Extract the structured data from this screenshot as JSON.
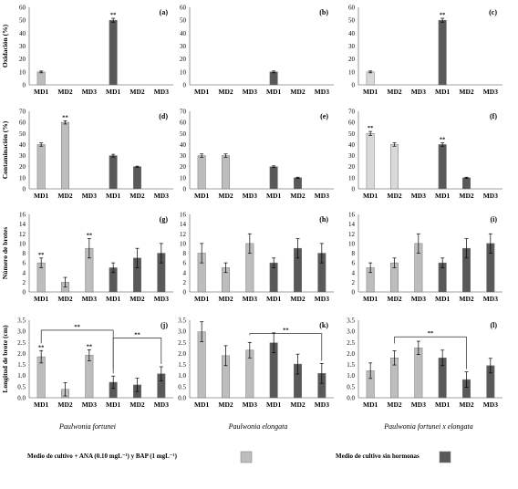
{
  "figure": {
    "species": [
      "Paulwonia fortunei",
      "Paulwonia elongata",
      "Paulwonia fortunei x elongata"
    ],
    "legend": {
      "hormone_label": "Medio de cultivo + ANA (0.10 mgL⁻¹) y BAP (1 mgL⁻¹)",
      "no_hormone_label": "Medio de cultivo sin hormonas"
    },
    "colors": {
      "light": "#bdbdbd",
      "lighter": "#d9d9d9",
      "dark": "#595959",
      "bar_stroke": "#777777",
      "axis": "#7f7f7f",
      "grid": "#000000"
    }
  },
  "chart_data": [
    {
      "panel": "a",
      "row": 0,
      "col": 0,
      "type": "bar",
      "ylabel": "Oxidación (%)",
      "ylim": [
        0,
        60
      ],
      "yticks": [
        0,
        10,
        20,
        30,
        40,
        50,
        60
      ],
      "categories": [
        "MD1",
        "MD2",
        "MD3",
        "MD1",
        "MD2",
        "MD3"
      ],
      "values": [
        10,
        0,
        0,
        50,
        0,
        0
      ],
      "errors": [
        0.7,
        0,
        0,
        1.5,
        0,
        0
      ],
      "stars": [
        "",
        "",
        "",
        "**",
        "",
        ""
      ],
      "fill": [
        "light",
        "light",
        "light",
        "dark",
        "dark",
        "dark"
      ]
    },
    {
      "panel": "b",
      "row": 0,
      "col": 1,
      "type": "bar",
      "ylabel": "",
      "ylim": [
        0,
        60
      ],
      "yticks": [
        0,
        10,
        20,
        30,
        40,
        50,
        60
      ],
      "categories": [
        "MD1",
        "MD2",
        "MD3",
        "MD1",
        "MD2",
        "MD3"
      ],
      "values": [
        0,
        0,
        0,
        10,
        0,
        0
      ],
      "errors": [
        0,
        0,
        0,
        0.7,
        0,
        0
      ],
      "stars": [
        "",
        "",
        "",
        "",
        "",
        ""
      ],
      "fill": [
        "light",
        "light",
        "light",
        "dark",
        "dark",
        "dark"
      ]
    },
    {
      "panel": "c",
      "row": 0,
      "col": 2,
      "type": "bar",
      "ylabel": "",
      "ylim": [
        0,
        60
      ],
      "yticks": [
        0,
        10,
        20,
        30,
        40,
        50,
        60
      ],
      "categories": [
        "MD1",
        "MD2",
        "MD3",
        "MD1",
        "MD2",
        "MD3"
      ],
      "values": [
        10,
        0,
        0,
        50,
        0,
        0
      ],
      "errors": [
        0.7,
        0,
        0,
        1.5,
        0,
        0
      ],
      "stars": [
        "",
        "",
        "",
        "**",
        "",
        ""
      ],
      "fill": [
        "lighter",
        "lighter",
        "lighter",
        "dark",
        "dark",
        "dark"
      ]
    },
    {
      "panel": "d",
      "row": 1,
      "col": 0,
      "type": "bar",
      "ylabel": "Contaminación (%)",
      "ylim": [
        0,
        70
      ],
      "yticks": [
        0,
        10,
        20,
        30,
        40,
        50,
        60,
        70
      ],
      "categories": [
        "MD1",
        "MD2",
        "MD3",
        "MD1",
        "MD2",
        "MD3"
      ],
      "values": [
        40,
        60,
        0,
        30,
        20,
        0
      ],
      "errors": [
        1.5,
        1.5,
        0,
        1.2,
        0.5,
        0
      ],
      "stars": [
        "",
        "**",
        "",
        "",
        "",
        ""
      ],
      "fill": [
        "light",
        "light",
        "light",
        "dark",
        "dark",
        "dark"
      ]
    },
    {
      "panel": "e",
      "row": 1,
      "col": 1,
      "type": "bar",
      "ylabel": "",
      "ylim": [
        0,
        70
      ],
      "yticks": [
        0,
        10,
        20,
        30,
        40,
        50,
        60,
        70
      ],
      "categories": [
        "MD1",
        "MD2",
        "MD3",
        "MD1",
        "MD2",
        "MD3"
      ],
      "values": [
        30,
        30,
        0,
        20,
        10,
        0
      ],
      "errors": [
        1.5,
        1.5,
        0,
        0.8,
        0.5,
        0
      ],
      "stars": [
        "",
        "",
        "",
        "",
        "",
        ""
      ],
      "fill": [
        "light",
        "light",
        "light",
        "dark",
        "dark",
        "dark"
      ]
    },
    {
      "panel": "f",
      "row": 1,
      "col": 2,
      "type": "bar",
      "ylabel": "",
      "ylim": [
        0,
        70
      ],
      "yticks": [
        0,
        10,
        20,
        30,
        40,
        50,
        60,
        70
      ],
      "categories": [
        "MD1",
        "MD2",
        "MD3",
        "MD1",
        "MD2",
        "MD3"
      ],
      "values": [
        50,
        40,
        0,
        40,
        10,
        0
      ],
      "errors": [
        1.8,
        1.5,
        0,
        1.5,
        0.5,
        0
      ],
      "stars": [
        "**",
        "",
        "",
        "**",
        "",
        ""
      ],
      "fill": [
        "lighter",
        "lighter",
        "lighter",
        "dark",
        "dark",
        "dark"
      ]
    },
    {
      "panel": "g",
      "row": 2,
      "col": 0,
      "type": "bar",
      "ylabel": "Número de brotes",
      "ylim": [
        0,
        16
      ],
      "yticks": [
        0,
        2,
        4,
        6,
        8,
        10,
        12,
        14,
        16
      ],
      "categories": [
        "MD1",
        "MD2",
        "MD3",
        "MD1",
        "MD2",
        "MD3"
      ],
      "values": [
        6,
        2,
        9,
        5,
        7,
        8
      ],
      "errors": [
        1,
        1,
        2,
        1,
        2,
        2
      ],
      "stars": [
        "**",
        "",
        "**",
        "",
        "",
        ""
      ],
      "fill": [
        "light",
        "light",
        "light",
        "dark",
        "dark",
        "dark"
      ]
    },
    {
      "panel": "h",
      "row": 2,
      "col": 1,
      "type": "bar",
      "ylabel": "",
      "ylim": [
        0,
        16
      ],
      "yticks": [
        0,
        2,
        4,
        6,
        8,
        10,
        12,
        14,
        16
      ],
      "categories": [
        "MD1",
        "MD2",
        "MD3",
        "MD1",
        "MD2",
        "MD3"
      ],
      "values": [
        8,
        5,
        10,
        6,
        9,
        8
      ],
      "errors": [
        2,
        1,
        2,
        1,
        2,
        2
      ],
      "stars": [
        "",
        "",
        "",
        "",
        "",
        ""
      ],
      "fill": [
        "light",
        "light",
        "light",
        "dark",
        "dark",
        "dark"
      ]
    },
    {
      "panel": "i",
      "row": 2,
      "col": 2,
      "type": "bar",
      "ylabel": "",
      "ylim": [
        0,
        16
      ],
      "yticks": [
        0,
        2,
        4,
        6,
        8,
        10,
        12,
        14,
        16
      ],
      "categories": [
        "MD1",
        "MD2",
        "MD3",
        "MD1",
        "MD2",
        "MD3"
      ],
      "values": [
        5,
        6,
        10,
        6,
        9,
        10
      ],
      "errors": [
        1,
        1,
        2,
        1,
        2,
        2
      ],
      "stars": [
        "",
        "",
        "",
        "",
        "",
        ""
      ],
      "fill": [
        "light",
        "light",
        "light",
        "dark",
        "dark",
        "dark"
      ]
    },
    {
      "panel": "j",
      "row": 3,
      "col": 0,
      "type": "bar",
      "ylabel": "Longitud de brote (cm)",
      "ylim": [
        0,
        3.5
      ],
      "yticks": [
        "0.0",
        "0.5",
        "1.0",
        "1.5",
        "2.0",
        "2.5",
        "3.0",
        "3.5"
      ],
      "categories": [
        "MD1",
        "MD2",
        "MD3",
        "MD1",
        "MD2",
        "MD3"
      ],
      "values": [
        1.85,
        0.38,
        1.92,
        0.7,
        0.58,
        1.08
      ],
      "errors": [
        0.28,
        0.3,
        0.25,
        0.28,
        0.3,
        0.32
      ],
      "stars": [
        "**",
        "",
        "**",
        "",
        "",
        ""
      ],
      "fill": [
        "light",
        "light",
        "light",
        "dark",
        "dark",
        "dark"
      ],
      "brackets": [
        {
          "from": 0,
          "to": 3,
          "label": "**",
          "y": 3.05
        },
        {
          "from": 3,
          "to": 5,
          "label": "**",
          "y": 2.7
        }
      ]
    },
    {
      "panel": "k",
      "row": 3,
      "col": 1,
      "type": "bar",
      "ylabel": "",
      "ylim": [
        0,
        3.5
      ],
      "yticks": [
        "0.0",
        "0.5",
        "1.0",
        "1.5",
        "2.0",
        "2.5",
        "3.0",
        "3.5"
      ],
      "categories": [
        "MD1",
        "MD2",
        "MD3",
        "MD1",
        "MD2",
        "MD3"
      ],
      "values": [
        2.98,
        1.9,
        2.15,
        2.48,
        1.52,
        1.1
      ],
      "errors": [
        0.45,
        0.45,
        0.35,
        0.45,
        0.45,
        0.45
      ],
      "stars": [
        "",
        "",
        "",
        "",
        "",
        ""
      ],
      "fill": [
        "light",
        "light",
        "light",
        "dark",
        "dark",
        "dark"
      ],
      "brackets": [
        {
          "from": 2,
          "to": 5,
          "label": "**",
          "y": 2.9
        }
      ]
    },
    {
      "panel": "l",
      "row": 3,
      "col": 2,
      "type": "bar",
      "ylabel": "",
      "ylim": [
        0,
        3.5
      ],
      "yticks": [
        "0.0",
        "0.5",
        "1.0",
        "1.5",
        "2.0",
        "2.5",
        "3.0",
        "3.5"
      ],
      "categories": [
        "MD1",
        "MD2",
        "MD3",
        "MD1",
        "MD2",
        "MD3"
      ],
      "values": [
        1.22,
        1.8,
        2.25,
        1.8,
        0.82,
        1.45
      ],
      "errors": [
        0.35,
        0.32,
        0.3,
        0.35,
        0.35,
        0.33
      ],
      "stars": [
        "",
        "",
        "",
        "",
        "",
        ""
      ],
      "fill": [
        "light",
        "light",
        "light",
        "dark",
        "dark",
        "dark"
      ],
      "brackets": [
        {
          "from": 1,
          "to": 4,
          "label": "**",
          "y": 2.75
        }
      ]
    }
  ]
}
